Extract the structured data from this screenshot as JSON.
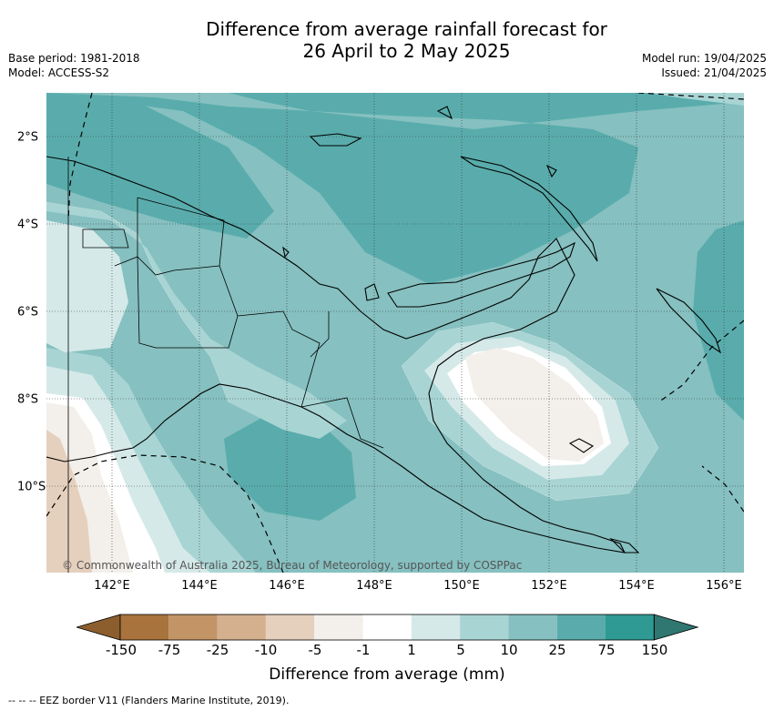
{
  "title": {
    "line1": "Difference from average rainfall forecast for",
    "line2": "26 April to 2 May 2025"
  },
  "meta_left": {
    "base_period": "Base period: 1981-2018",
    "model": "Model: ACCESS-S2"
  },
  "meta_right": {
    "model_run": "Model run: 19/04/2025",
    "issued": "Issued: 21/04/2025"
  },
  "map": {
    "lon_labels": [
      "142°E",
      "144°E",
      "146°E",
      "148°E",
      "150°E",
      "152°E",
      "154°E",
      "156°E"
    ],
    "lat_labels": [
      "2°S",
      "4°S",
      "6°S",
      "8°S",
      "10°S"
    ],
    "copyright": "© Commonwealth of Australia 2025, Bureau of Meteorology, supported by COSPPac",
    "colors": {
      "c150": "#2e9a93",
      "c75": "#5aacac",
      "c25": "#86c0c0",
      "c10": "#a9d4d4",
      "c5": "#d6e9e9",
      "c1": "#ffffff",
      "cn1": "#f3efea",
      "cn5": "#e5d0be",
      "cn10": "#d4b08f"
    }
  },
  "colorbar": {
    "ticks": [
      "-150",
      "-75",
      "-25",
      "-10",
      "-5",
      "-1",
      "1",
      "5",
      "10",
      "25",
      "75",
      "150"
    ],
    "colors": [
      "#8c5e2e",
      "#a8733c",
      "#c29466",
      "#d4b08f",
      "#e5d0be",
      "#f3efea",
      "#ffffff",
      "#d6e9e9",
      "#a9d4d4",
      "#86c0c0",
      "#5aacac",
      "#2e9a93",
      "#2f7770"
    ],
    "label": "Difference from average (mm)"
  },
  "footer": "-- -- -- EEZ border V11 (Flanders Marine Institute, 2019)."
}
